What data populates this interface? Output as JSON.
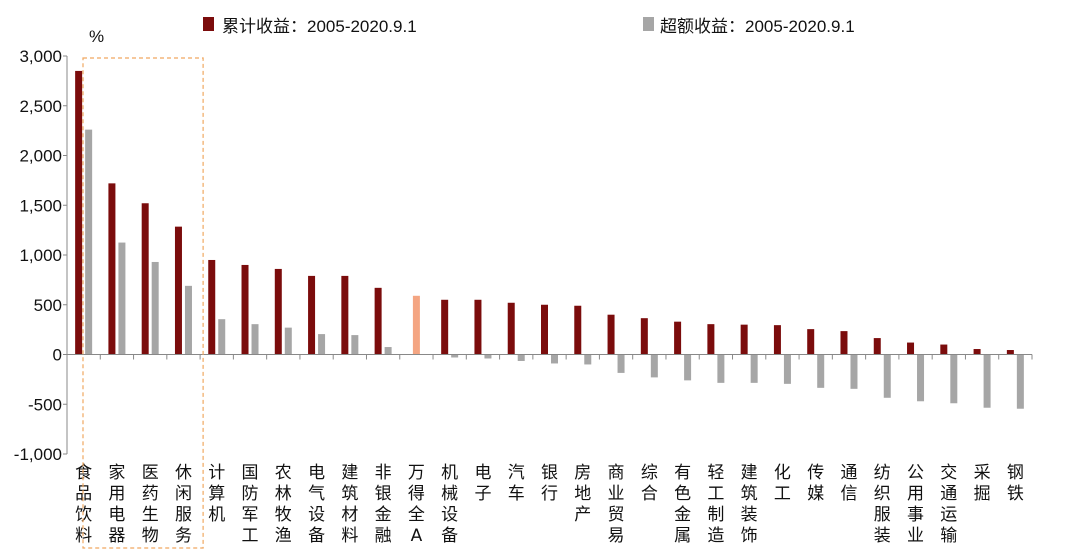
{
  "chart_data": {
    "type": "bar",
    "unit_label": "%",
    "categories": [
      "食品饮料",
      "家用电器",
      "医药生物",
      "休闲服务",
      "计算机",
      "国防军工",
      "农林牧渔",
      "电气设备",
      "建筑材料",
      "非银金融",
      "万得全A",
      "机械设备",
      "电子",
      "汽车",
      "银行",
      "房地产",
      "商业贸易",
      "综合",
      "有色金属",
      "轻工制造",
      "建筑装饰",
      "化工",
      "传媒",
      "通信",
      "纺织服装",
      "公用事业",
      "交通运输",
      "采掘",
      "钢铁"
    ],
    "series": [
      {
        "name": "累计收益：2005-2020.9.1",
        "color": "#7b0c0c",
        "values": [
          2850,
          1720,
          1520,
          1285,
          950,
          900,
          860,
          790,
          790,
          670,
          590,
          550,
          550,
          520,
          500,
          490,
          400,
          365,
          330,
          305,
          300,
          295,
          255,
          235,
          165,
          120,
          100,
          55,
          45
        ]
      },
      {
        "name": "超额收益：2005-2020.9.1",
        "color": "#a6a6a6",
        "values": [
          2260,
          1125,
          930,
          690,
          355,
          305,
          270,
          205,
          195,
          75,
          null,
          -30,
          -40,
          -65,
          -90,
          -100,
          -185,
          -230,
          -260,
          -285,
          -285,
          -295,
          -335,
          -345,
          -435,
          -470,
          -490,
          -535,
          -545
        ]
      }
    ],
    "highlight": {
      "category": "万得全A",
      "color": "#f4a582"
    },
    "ylim": [
      -1000,
      3000
    ],
    "yticks": [
      -1000,
      -500,
      0,
      500,
      1000,
      1500,
      2000,
      2500,
      3000
    ],
    "ytick_labels": [
      "-1,000",
      "-500",
      "0",
      "500",
      "1,000",
      "1,500",
      "2,000",
      "2,500",
      "3,000"
    ],
    "grid": false,
    "legend_position": "top",
    "emphasis_box": {
      "categories": [
        "食品饮料",
        "家用电器",
        "医药生物",
        "休闲服务"
      ],
      "style": "dashed",
      "color": "#f0a860"
    }
  }
}
